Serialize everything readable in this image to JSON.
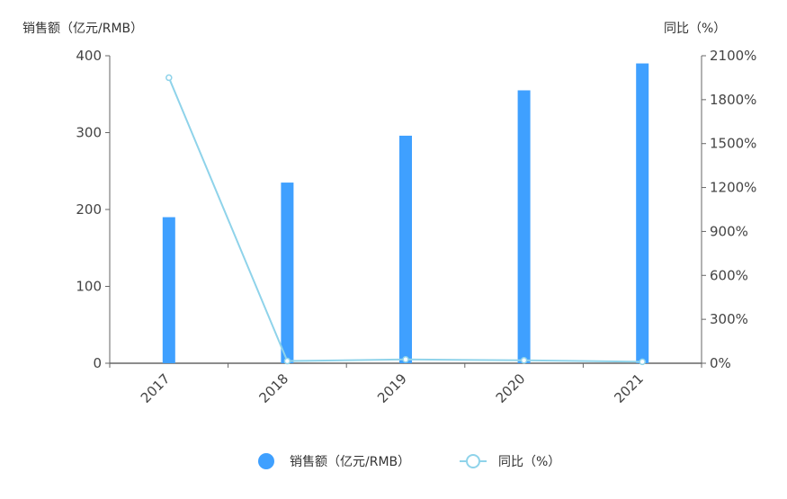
{
  "chart_data": {
    "type": "bar",
    "categories": [
      "2017",
      "2018",
      "2019",
      "2020",
      "2021"
    ],
    "series": [
      {
        "name": "销售额（亿元/RMB）",
        "type": "bar",
        "axis": "left",
        "color": "#3fa0ff",
        "values": [
          190,
          235,
          296,
          355,
          390
        ]
      },
      {
        "name": "同比（%）",
        "type": "line",
        "axis": "right",
        "color": "#8fd3ea",
        "values": [
          1950,
          15,
          26,
          20,
          10
        ]
      }
    ],
    "y_left": {
      "label": "销售额（亿元/RMB）",
      "ylim": [
        0,
        400
      ],
      "ticks": [
        "0",
        "100",
        "200",
        "300",
        "400"
      ]
    },
    "y_right": {
      "label": "同比（%）",
      "ylim": [
        0,
        2100
      ],
      "ticks": [
        "0%",
        "300%",
        "600%",
        "900%",
        "1200%",
        "1500%",
        "1800%",
        "2100%"
      ]
    },
    "legend": {
      "position": "bottom-center",
      "items": [
        "销售额（亿元/RMB）",
        "同比（%）"
      ]
    },
    "grid": false
  }
}
